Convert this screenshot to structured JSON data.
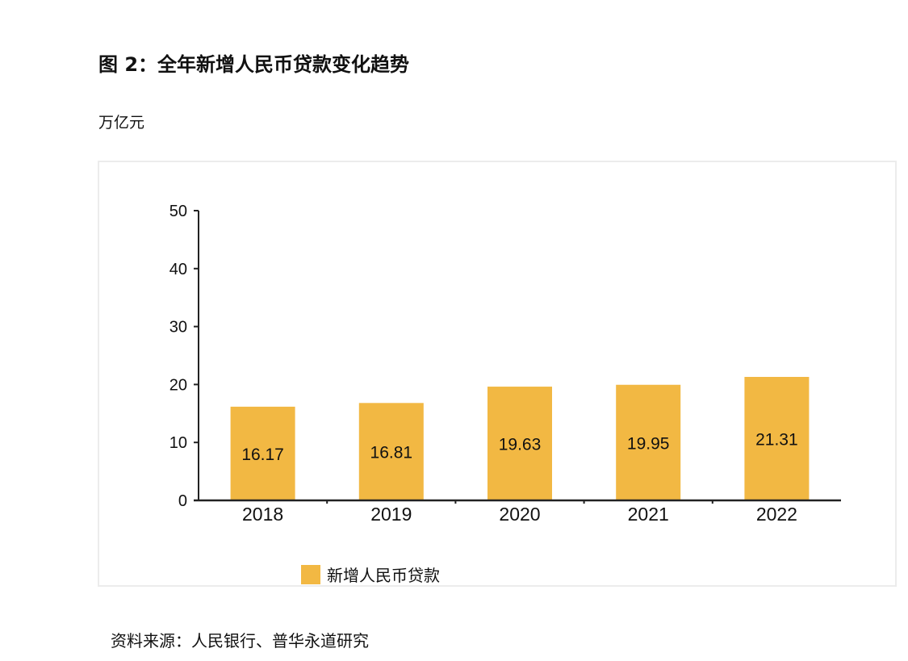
{
  "title": "图 2：全年新增人民币贷款变化趋势",
  "unit": "万亿元",
  "source": "资料来源：人民银行、普华永道研究",
  "chart_data": {
    "type": "bar",
    "categories": [
      "2018",
      "2019",
      "2020",
      "2021",
      "2022"
    ],
    "series": [
      {
        "name": "新增人民币贷款",
        "values": [
          16.17,
          16.81,
          19.63,
          19.95,
          21.31
        ],
        "color": "#F2B843"
      }
    ],
    "data_labels": [
      "16.17",
      "16.81",
      "19.63",
      "19.95",
      "21.31"
    ],
    "yticks": [
      "0",
      "10",
      "20",
      "30",
      "40",
      "50"
    ],
    "ylim": [
      0,
      50
    ],
    "grid": false,
    "legend": "bottom"
  }
}
